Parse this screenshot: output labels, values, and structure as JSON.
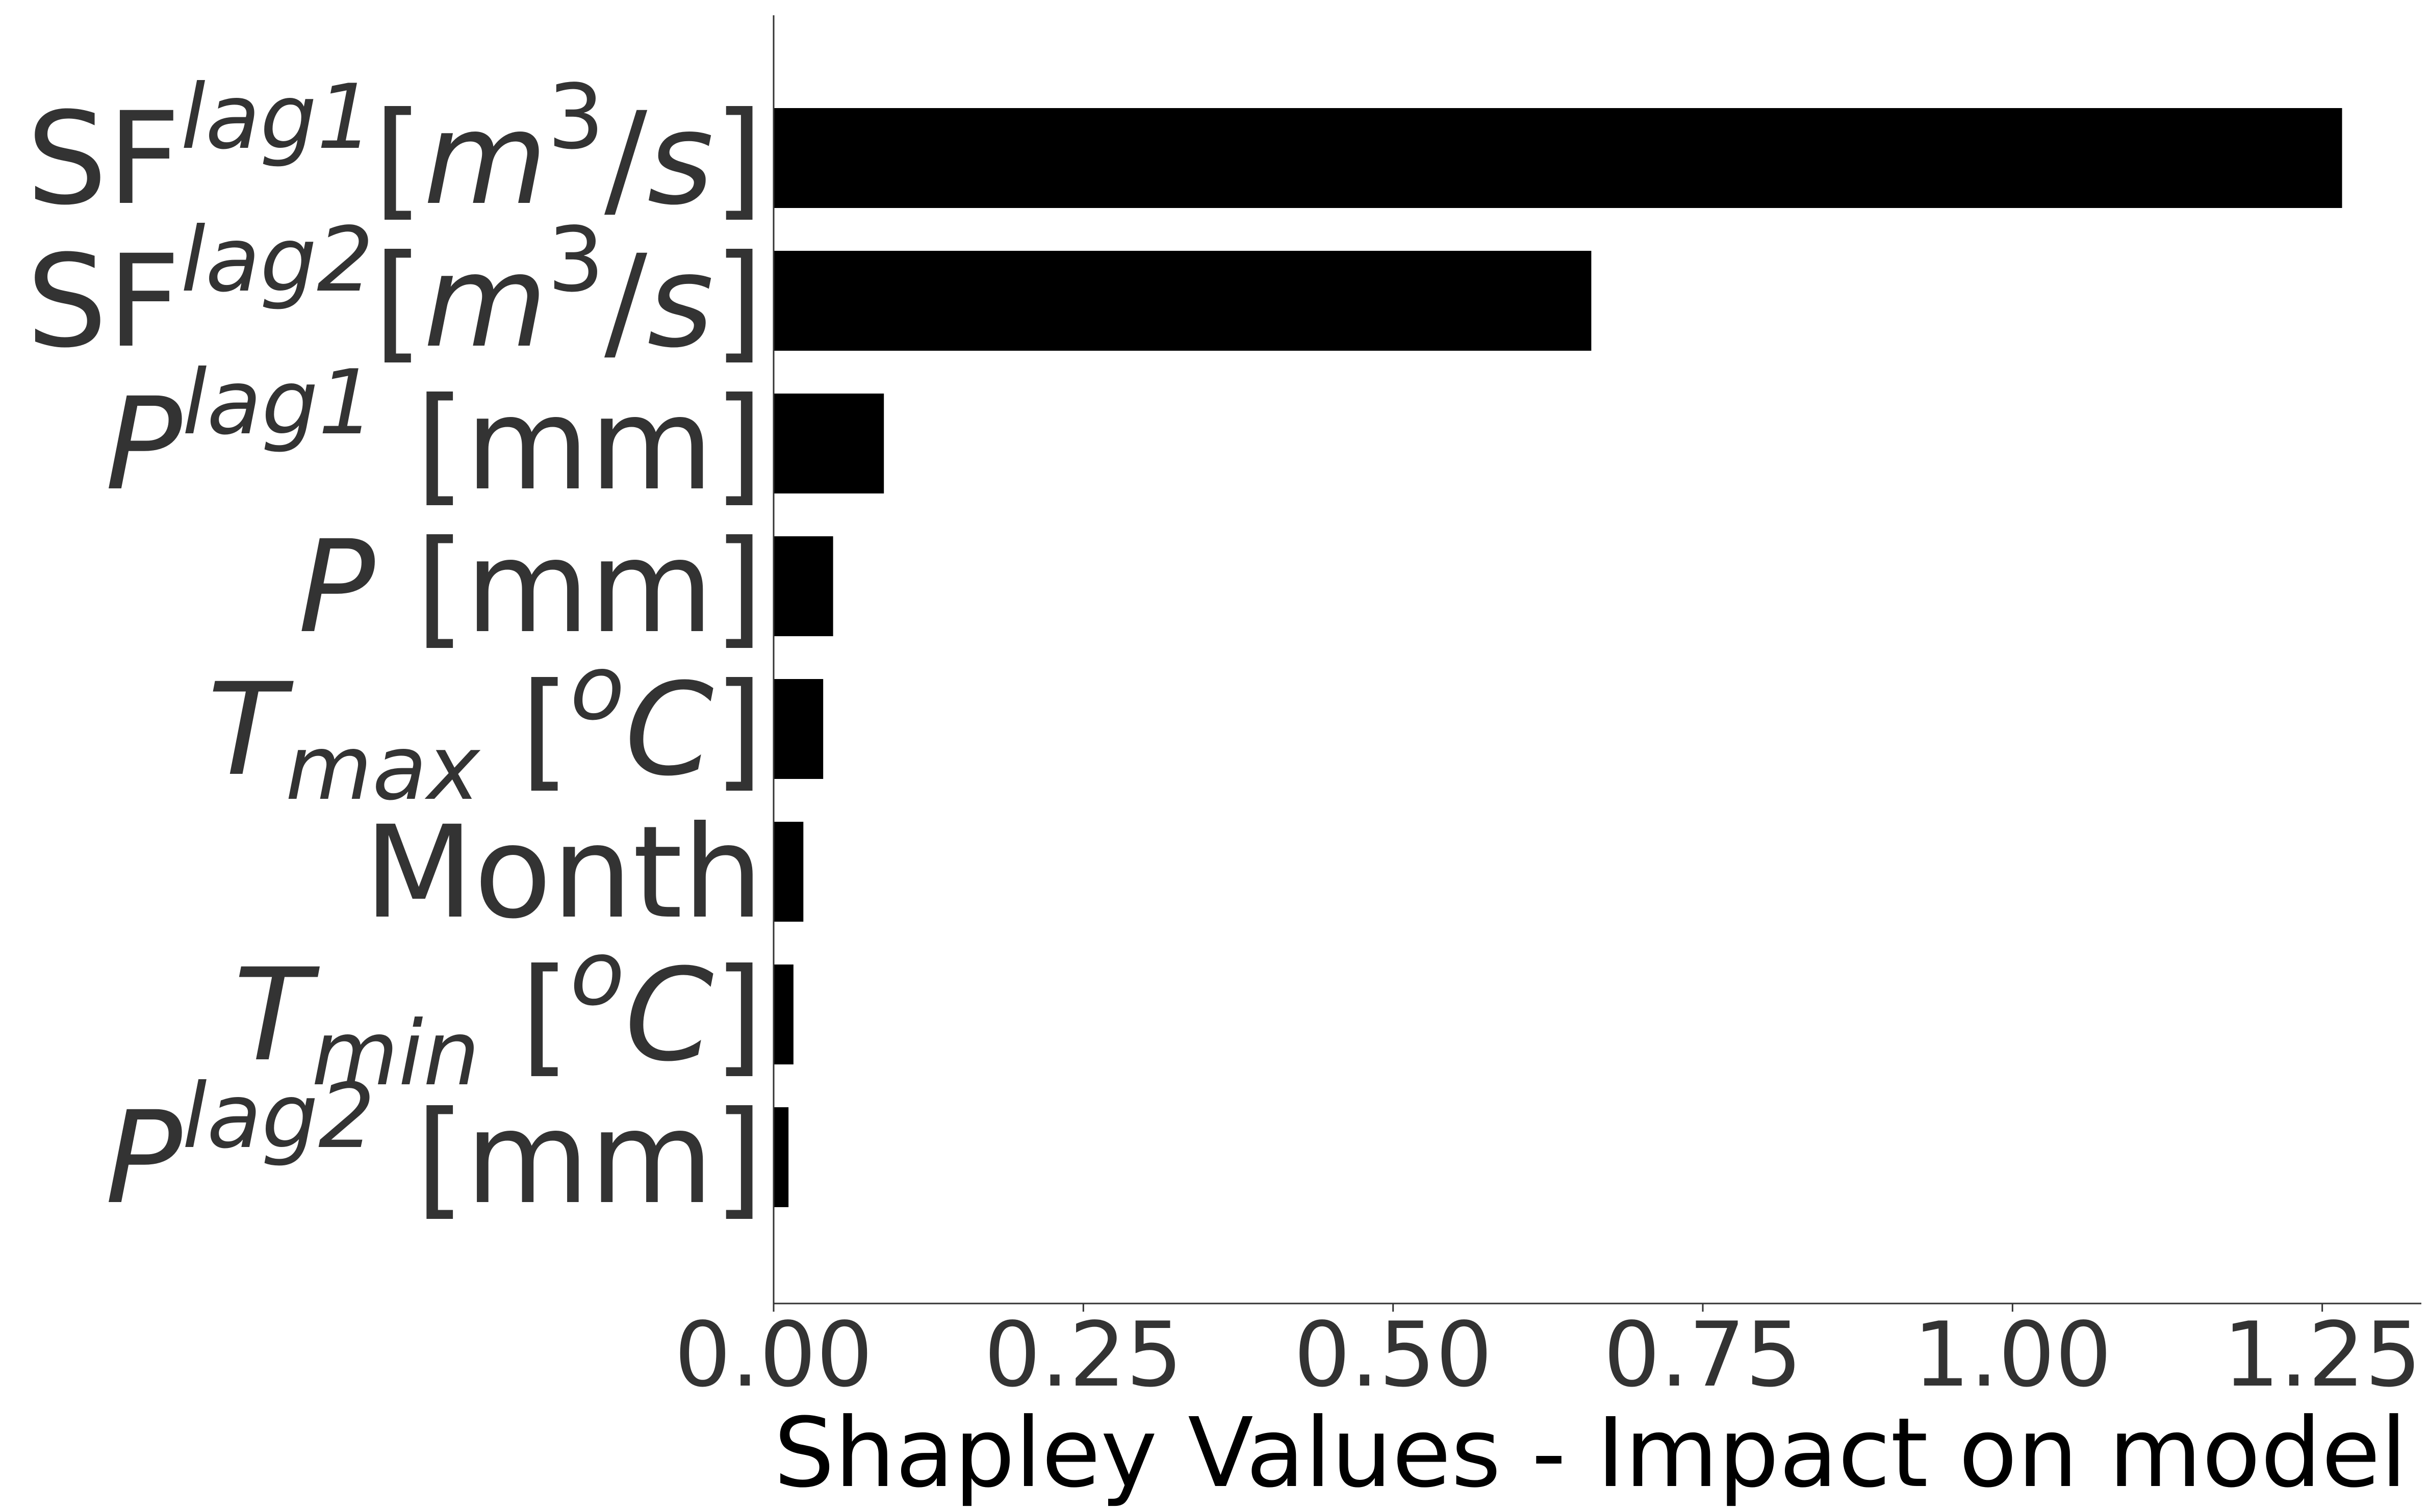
{
  "chart_data": {
    "type": "bar",
    "orientation": "horizontal",
    "categories": [
      "SF^{lag1}[m^3/s]",
      "SF^{lag2}[m^3/s]",
      "P^{lag1} [mm]",
      "P [mm]",
      "T_{max} [^oC]",
      "Month",
      "T_{min} [^oC]",
      "P^{lag2} [mm]"
    ],
    "category_parts": [
      [
        {
          "t": "SF",
          "s": "n"
        },
        {
          "t": "lag1",
          "s": "sup"
        },
        {
          "t": "[",
          "s": "n"
        },
        {
          "t": "m",
          "s": "it"
        },
        {
          "t": "3",
          "s": "sup-n"
        },
        {
          "t": "/",
          "s": "n"
        },
        {
          "t": "s",
          "s": "it"
        },
        {
          "t": "]",
          "s": "n"
        }
      ],
      [
        {
          "t": "SF",
          "s": "n"
        },
        {
          "t": "lag2",
          "s": "sup"
        },
        {
          "t": "[",
          "s": "n"
        },
        {
          "t": "m",
          "s": "it"
        },
        {
          "t": "3",
          "s": "sup-n"
        },
        {
          "t": "/",
          "s": "n"
        },
        {
          "t": "s",
          "s": "it"
        },
        {
          "t": "]",
          "s": "n"
        }
      ],
      [
        {
          "t": "P",
          "s": "it"
        },
        {
          "t": "lag1",
          "s": "sup"
        },
        {
          "t": " [mm]",
          "s": "n"
        }
      ],
      [
        {
          "t": "P",
          "s": "it"
        },
        {
          "t": " [mm]",
          "s": "n"
        }
      ],
      [
        {
          "t": "T",
          "s": "it"
        },
        {
          "t": "max",
          "s": "sub"
        },
        {
          "t": " [",
          "s": "n"
        },
        {
          "t": "o",
          "s": "sup"
        },
        {
          "t": "C",
          "s": "it"
        },
        {
          "t": "]",
          "s": "n"
        }
      ],
      [
        {
          "t": "Month",
          "s": "n"
        }
      ],
      [
        {
          "t": "T",
          "s": "it"
        },
        {
          "t": "min",
          "s": "sub"
        },
        {
          "t": " [",
          "s": "n"
        },
        {
          "t": "o",
          "s": "sup"
        },
        {
          "t": "C",
          "s": "it"
        },
        {
          "t": "]",
          "s": "n"
        }
      ],
      [
        {
          "t": "P",
          "s": "it"
        },
        {
          "t": "lag2",
          "s": "sup"
        },
        {
          "t": " [mm]",
          "s": "n"
        }
      ]
    ],
    "values": [
      1.266,
      0.66,
      0.089,
      0.048,
      0.04,
      0.024,
      0.016,
      0.012
    ],
    "xlabel": "Shapley Values - Impact on model",
    "ylabel": "",
    "xlim": [
      0.0,
      1.33
    ],
    "xticks": [
      "0.00",
      "0.25",
      "0.50",
      "0.75",
      "1.00",
      "1.25"
    ],
    "xtick_values": [
      0.0,
      0.25,
      0.5,
      0.75,
      1.0,
      1.25
    ],
    "grid": false,
    "bar_color": "#000000",
    "text_color": "#333333"
  }
}
